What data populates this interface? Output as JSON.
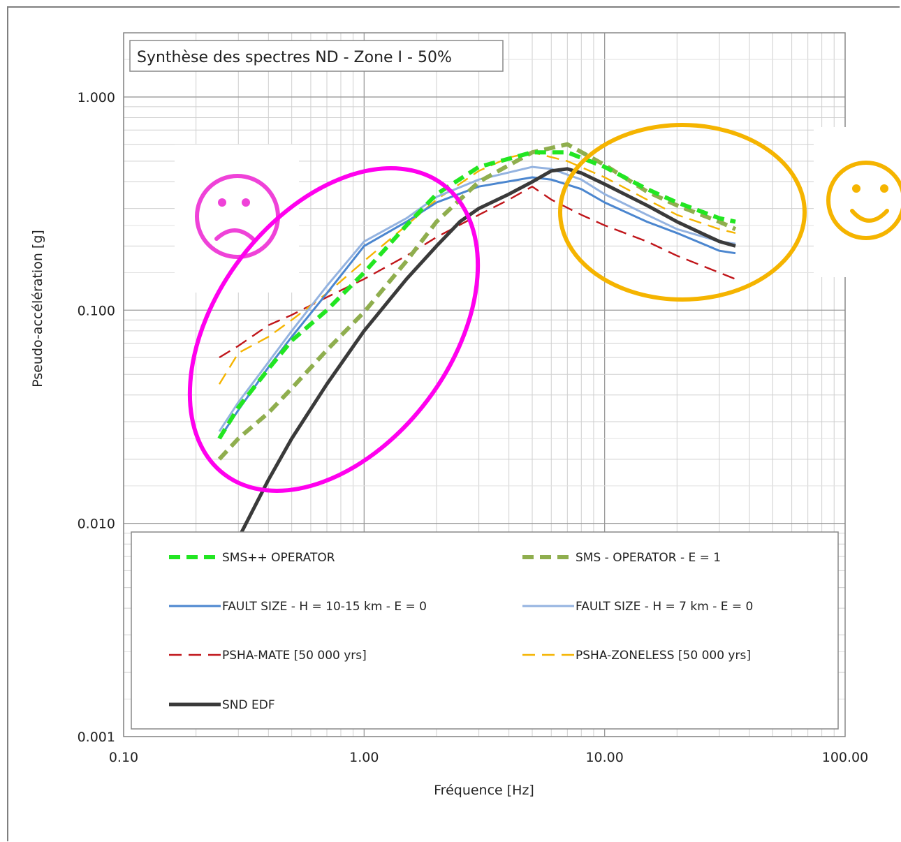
{
  "chart_data": {
    "type": "line",
    "title": "Synthèse des spectres ND - Zone I - 50%",
    "xlabel": "Fréquence [Hz]",
    "ylabel": "Pseudo-accélération [g]",
    "xscale": "log",
    "yscale": "log",
    "xlim": [
      0.1,
      100
    ],
    "ylim": [
      0.001,
      2
    ],
    "grid": true,
    "legend_position": "bottom",
    "x_ticks": [
      {
        "value": 0.1,
        "label": "0.10"
      },
      {
        "value": 1,
        "label": "1.00"
      },
      {
        "value": 10,
        "label": "10.00"
      },
      {
        "value": 100,
        "label": "100.00"
      }
    ],
    "y_ticks": [
      {
        "value": 0.001,
        "label": "0.001"
      },
      {
        "value": 0.01,
        "label": "0.010"
      },
      {
        "value": 0.1,
        "label": "0.100"
      },
      {
        "value": 1,
        "label": "1.000"
      }
    ],
    "series": [
      {
        "name": "SMS++ OPERATOR",
        "color": "#22e622",
        "style": "dashed-thick",
        "points": [
          [
            0.25,
            0.025
          ],
          [
            0.3,
            0.035
          ],
          [
            0.4,
            0.053
          ],
          [
            0.5,
            0.072
          ],
          [
            0.7,
            0.1
          ],
          [
            1.0,
            0.15
          ],
          [
            1.5,
            0.25
          ],
          [
            2.0,
            0.35
          ],
          [
            3.0,
            0.47
          ],
          [
            5.0,
            0.55
          ],
          [
            7.0,
            0.55
          ],
          [
            10.0,
            0.47
          ],
          [
            15.0,
            0.37
          ],
          [
            20.0,
            0.32
          ],
          [
            30.0,
            0.27
          ],
          [
            35.0,
            0.26
          ]
        ]
      },
      {
        "name": "SMS - OPERATOR - E = 1",
        "color": "#8fae4e",
        "style": "dashed-thick",
        "points": [
          [
            0.25,
            0.02
          ],
          [
            0.3,
            0.025
          ],
          [
            0.4,
            0.033
          ],
          [
            0.5,
            0.043
          ],
          [
            0.7,
            0.065
          ],
          [
            1.0,
            0.098
          ],
          [
            1.5,
            0.17
          ],
          [
            2.0,
            0.26
          ],
          [
            3.0,
            0.4
          ],
          [
            5.0,
            0.55
          ],
          [
            7.0,
            0.6
          ],
          [
            10.0,
            0.48
          ],
          [
            15.0,
            0.36
          ],
          [
            20.0,
            0.31
          ],
          [
            30.0,
            0.26
          ],
          [
            35.0,
            0.24
          ]
        ]
      },
      {
        "name": "FAULT SIZE - H = 10-15 km - E = 0",
        "color": "#4b86cf",
        "style": "solid",
        "points": [
          [
            0.25,
            0.025
          ],
          [
            0.3,
            0.034
          ],
          [
            0.4,
            0.054
          ],
          [
            0.5,
            0.075
          ],
          [
            0.7,
            0.12
          ],
          [
            1.0,
            0.2
          ],
          [
            1.5,
            0.26
          ],
          [
            2.0,
            0.32
          ],
          [
            3.0,
            0.38
          ],
          [
            5.0,
            0.42
          ],
          [
            6.0,
            0.41
          ],
          [
            8.0,
            0.37
          ],
          [
            10.0,
            0.32
          ],
          [
            15.0,
            0.26
          ],
          [
            20.0,
            0.23
          ],
          [
            30.0,
            0.19
          ],
          [
            35.0,
            0.185
          ]
        ]
      },
      {
        "name": "FAULT SIZE - H = 7 km - E = 0",
        "color": "#94b3e0",
        "style": "solid",
        "points": [
          [
            0.25,
            0.027
          ],
          [
            0.3,
            0.037
          ],
          [
            0.4,
            0.057
          ],
          [
            0.5,
            0.08
          ],
          [
            0.7,
            0.13
          ],
          [
            1.0,
            0.21
          ],
          [
            1.5,
            0.27
          ],
          [
            2.0,
            0.34
          ],
          [
            3.0,
            0.41
          ],
          [
            5.0,
            0.47
          ],
          [
            6.0,
            0.46
          ],
          [
            8.0,
            0.41
          ],
          [
            10.0,
            0.35
          ],
          [
            15.0,
            0.28
          ],
          [
            20.0,
            0.24
          ],
          [
            30.0,
            0.21
          ],
          [
            35.0,
            0.205
          ]
        ]
      },
      {
        "name": "PSHA-MATE [50 000 yrs]",
        "color": "#c0151a",
        "style": "dashed",
        "points": [
          [
            0.25,
            0.06
          ],
          [
            0.3,
            0.068
          ],
          [
            0.4,
            0.085
          ],
          [
            0.5,
            0.095
          ],
          [
            0.7,
            0.115
          ],
          [
            1.0,
            0.14
          ],
          [
            1.5,
            0.18
          ],
          [
            2.0,
            0.22
          ],
          [
            3.0,
            0.28
          ],
          [
            4.0,
            0.33
          ],
          [
            5.0,
            0.38
          ],
          [
            6.0,
            0.33
          ],
          [
            8.0,
            0.28
          ],
          [
            10.0,
            0.25
          ],
          [
            15.0,
            0.21
          ],
          [
            20.0,
            0.18
          ],
          [
            30.0,
            0.15
          ],
          [
            35.0,
            0.14
          ]
        ]
      },
      {
        "name": "PSHA-ZONELESS [50 000 yrs]",
        "color": "#f5b400",
        "style": "dashed",
        "points": [
          [
            0.25,
            0.045
          ],
          [
            0.3,
            0.063
          ],
          [
            0.4,
            0.075
          ],
          [
            0.5,
            0.09
          ],
          [
            0.7,
            0.12
          ],
          [
            1.0,
            0.17
          ],
          [
            1.5,
            0.25
          ],
          [
            2.0,
            0.33
          ],
          [
            3.0,
            0.45
          ],
          [
            4.0,
            0.52
          ],
          [
            5.0,
            0.55
          ],
          [
            7.0,
            0.5
          ],
          [
            10.0,
            0.42
          ],
          [
            15.0,
            0.33
          ],
          [
            20.0,
            0.28
          ],
          [
            30.0,
            0.24
          ],
          [
            35.0,
            0.23
          ]
        ]
      },
      {
        "name": "SND EDF",
        "color": "#3a3a3a",
        "style": "solid-thick",
        "points": [
          [
            0.3,
            0.0085
          ],
          [
            0.4,
            0.016
          ],
          [
            0.5,
            0.025
          ],
          [
            0.7,
            0.045
          ],
          [
            1.0,
            0.08
          ],
          [
            1.5,
            0.14
          ],
          [
            2.0,
            0.2
          ],
          [
            2.5,
            0.26
          ],
          [
            3.0,
            0.3
          ],
          [
            4.0,
            0.35
          ],
          [
            5.0,
            0.4
          ],
          [
            6.0,
            0.45
          ],
          [
            7.0,
            0.46
          ],
          [
            8.0,
            0.44
          ],
          [
            10.0,
            0.39
          ],
          [
            15.0,
            0.31
          ],
          [
            20.0,
            0.26
          ],
          [
            30.0,
            0.21
          ],
          [
            35.0,
            0.2
          ]
        ]
      }
    ]
  }
}
